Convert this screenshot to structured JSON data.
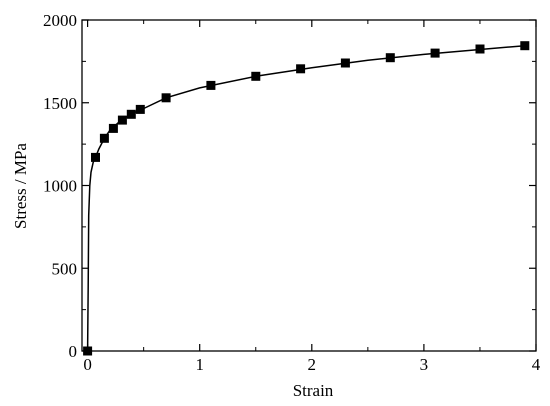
{
  "chart_data": {
    "type": "scatter",
    "xlabel": "Strain",
    "ylabel": "Stress / MPa",
    "xlim": [
      -0.05,
      4.0
    ],
    "ylim": [
      0,
      2000
    ],
    "xticks": [
      0,
      1,
      2,
      3,
      4
    ],
    "yticks": [
      0,
      500,
      1000,
      1500,
      2000
    ],
    "grid": false,
    "marker_color": "#000000",
    "line_color": "#000000",
    "series": [
      {
        "style": "markers",
        "x": [
          0.0,
          0.07,
          0.15,
          0.23,
          0.31,
          0.39,
          0.47,
          0.7,
          1.1,
          1.5,
          1.9,
          2.3,
          2.7,
          3.1,
          3.5,
          3.9
        ],
        "y": [
          0,
          1170,
          1285,
          1345,
          1395,
          1430,
          1460,
          1530,
          1605,
          1660,
          1705,
          1740,
          1772,
          1800,
          1825,
          1845
        ]
      },
      {
        "style": "line",
        "x": [
          0.0,
          0.005,
          0.01,
          0.02,
          0.03,
          0.05,
          0.07,
          0.1,
          0.15,
          0.2,
          0.3,
          0.4,
          0.5,
          0.7,
          1.0,
          1.5,
          2.0,
          2.5,
          3.0,
          3.5,
          3.9
        ],
        "y": [
          0,
          400,
          820,
          1000,
          1080,
          1140,
          1170,
          1220,
          1285,
          1335,
          1395,
          1435,
          1465,
          1530,
          1590,
          1660,
          1712,
          1757,
          1792,
          1822,
          1845
        ]
      }
    ]
  }
}
